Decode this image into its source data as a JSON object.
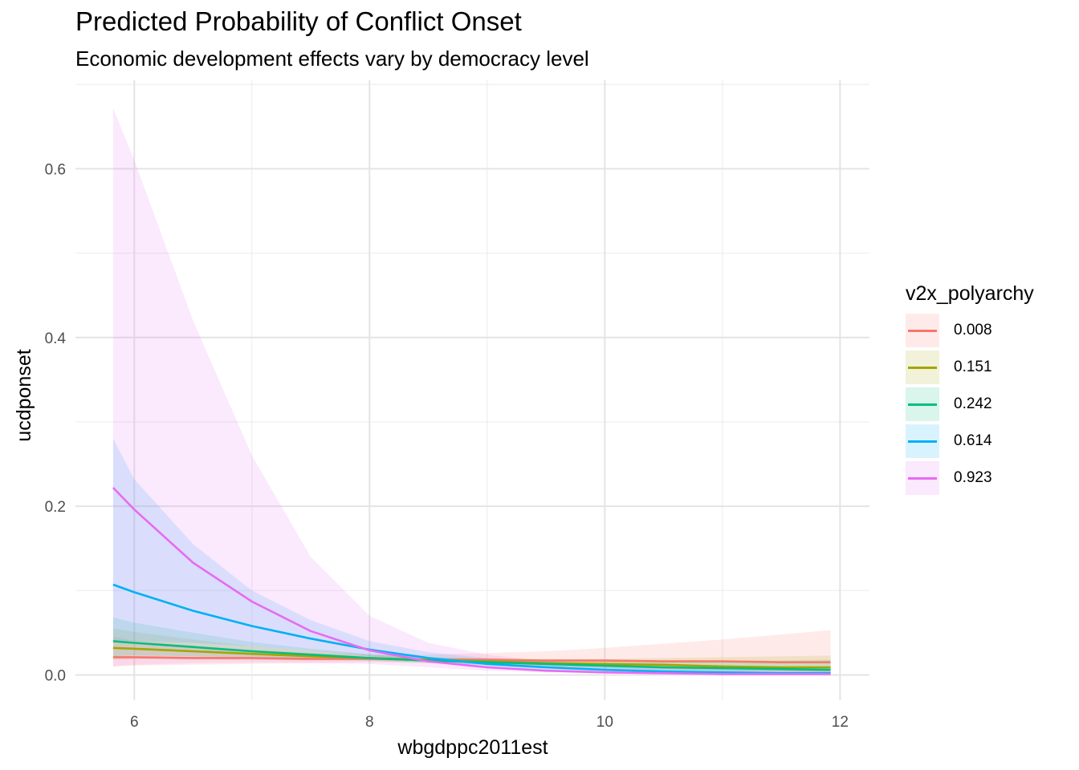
{
  "title": "Predicted Probability of Conflict Onset",
  "subtitle": "Economic development effects vary by democracy level",
  "chart_data": {
    "type": "line",
    "title": "Predicted Probability of Conflict Onset",
    "subtitle": "Economic development effects vary by democracy level",
    "xlabel": "wbgdppc2011est",
    "ylabel": "ucdponset",
    "xlim": [
      5.5,
      12.25
    ],
    "ylim": [
      -0.03,
      0.705
    ],
    "x_ticks": [
      6,
      8,
      10,
      12
    ],
    "y_ticks": [
      0.0,
      0.2,
      0.4,
      0.6
    ],
    "x_tick_labels": [
      "6",
      "8",
      "10",
      "12"
    ],
    "y_tick_labels": [
      "0.0",
      "0.2",
      "0.4",
      "0.6"
    ],
    "grid": true,
    "legend": {
      "title": "v2x_polyarchy",
      "position": "right"
    },
    "x": [
      5.82,
      6.0,
      6.5,
      7.0,
      7.5,
      8.0,
      8.5,
      9.0,
      9.5,
      10.0,
      10.5,
      11.0,
      11.5,
      11.92
    ],
    "series": [
      {
        "name": "0.008",
        "color": "#F8766D",
        "fill": "#F8766D",
        "values": [
          0.021,
          0.021,
          0.02,
          0.02,
          0.019,
          0.019,
          0.018,
          0.018,
          0.017,
          0.017,
          0.016,
          0.016,
          0.015,
          0.015
        ],
        "lower": [
          0.01,
          0.011,
          0.012,
          0.013,
          0.014,
          0.015,
          0.014,
          0.012,
          0.01,
          0.008,
          0.006,
          0.005,
          0.004,
          0.003
        ],
        "upper": [
          0.045,
          0.041,
          0.035,
          0.03,
          0.026,
          0.024,
          0.024,
          0.026,
          0.028,
          0.032,
          0.037,
          0.042,
          0.048,
          0.053
        ]
      },
      {
        "name": "0.151",
        "color": "#A3A500",
        "fill": "#A3A500",
        "values": [
          0.032,
          0.031,
          0.028,
          0.025,
          0.022,
          0.02,
          0.018,
          0.016,
          0.014,
          0.013,
          0.012,
          0.01,
          0.009,
          0.009
        ],
        "lower": [
          0.018,
          0.019,
          0.019,
          0.018,
          0.017,
          0.017,
          0.015,
          0.013,
          0.011,
          0.009,
          0.007,
          0.005,
          0.004,
          0.003
        ],
        "upper": [
          0.055,
          0.051,
          0.042,
          0.034,
          0.029,
          0.024,
          0.021,
          0.02,
          0.019,
          0.019,
          0.02,
          0.021,
          0.022,
          0.023
        ]
      },
      {
        "name": "0.242",
        "color": "#00BF7D",
        "fill": "#00BF7D",
        "values": [
          0.04,
          0.038,
          0.033,
          0.028,
          0.024,
          0.02,
          0.017,
          0.015,
          0.013,
          0.011,
          0.009,
          0.008,
          0.007,
          0.006
        ],
        "lower": [
          0.022,
          0.023,
          0.022,
          0.021,
          0.019,
          0.017,
          0.014,
          0.012,
          0.009,
          0.007,
          0.005,
          0.004,
          0.003,
          0.002
        ],
        "upper": [
          0.068,
          0.062,
          0.05,
          0.039,
          0.031,
          0.025,
          0.021,
          0.019,
          0.018,
          0.017,
          0.017,
          0.017,
          0.017,
          0.018
        ]
      },
      {
        "name": "0.614",
        "color": "#00B0F6",
        "fill": "#00B0F6",
        "values": [
          0.107,
          0.098,
          0.076,
          0.058,
          0.043,
          0.03,
          0.02,
          0.013,
          0.009,
          0.006,
          0.004,
          0.003,
          0.002,
          0.002
        ],
        "lower": [
          0.04,
          0.04,
          0.038,
          0.034,
          0.029,
          0.022,
          0.015,
          0.009,
          0.005,
          0.003,
          0.002,
          0.001,
          0.001,
          0.0
        ],
        "upper": [
          0.28,
          0.232,
          0.155,
          0.1,
          0.065,
          0.04,
          0.027,
          0.02,
          0.016,
          0.013,
          0.011,
          0.01,
          0.009,
          0.009
        ]
      },
      {
        "name": "0.923",
        "color": "#E76BF3",
        "fill": "#E76BF3",
        "values": [
          0.222,
          0.196,
          0.133,
          0.087,
          0.052,
          0.029,
          0.016,
          0.009,
          0.005,
          0.003,
          0.002,
          0.001,
          0.001,
          0.001
        ],
        "lower": [
          0.01,
          0.012,
          0.014,
          0.015,
          0.014,
          0.013,
          0.009,
          0.005,
          0.003,
          0.002,
          0.001,
          0.0,
          0.0,
          0.0
        ],
        "upper": [
          0.672,
          0.61,
          0.42,
          0.26,
          0.14,
          0.07,
          0.038,
          0.024,
          0.016,
          0.012,
          0.009,
          0.007,
          0.006,
          0.005
        ]
      }
    ]
  }
}
